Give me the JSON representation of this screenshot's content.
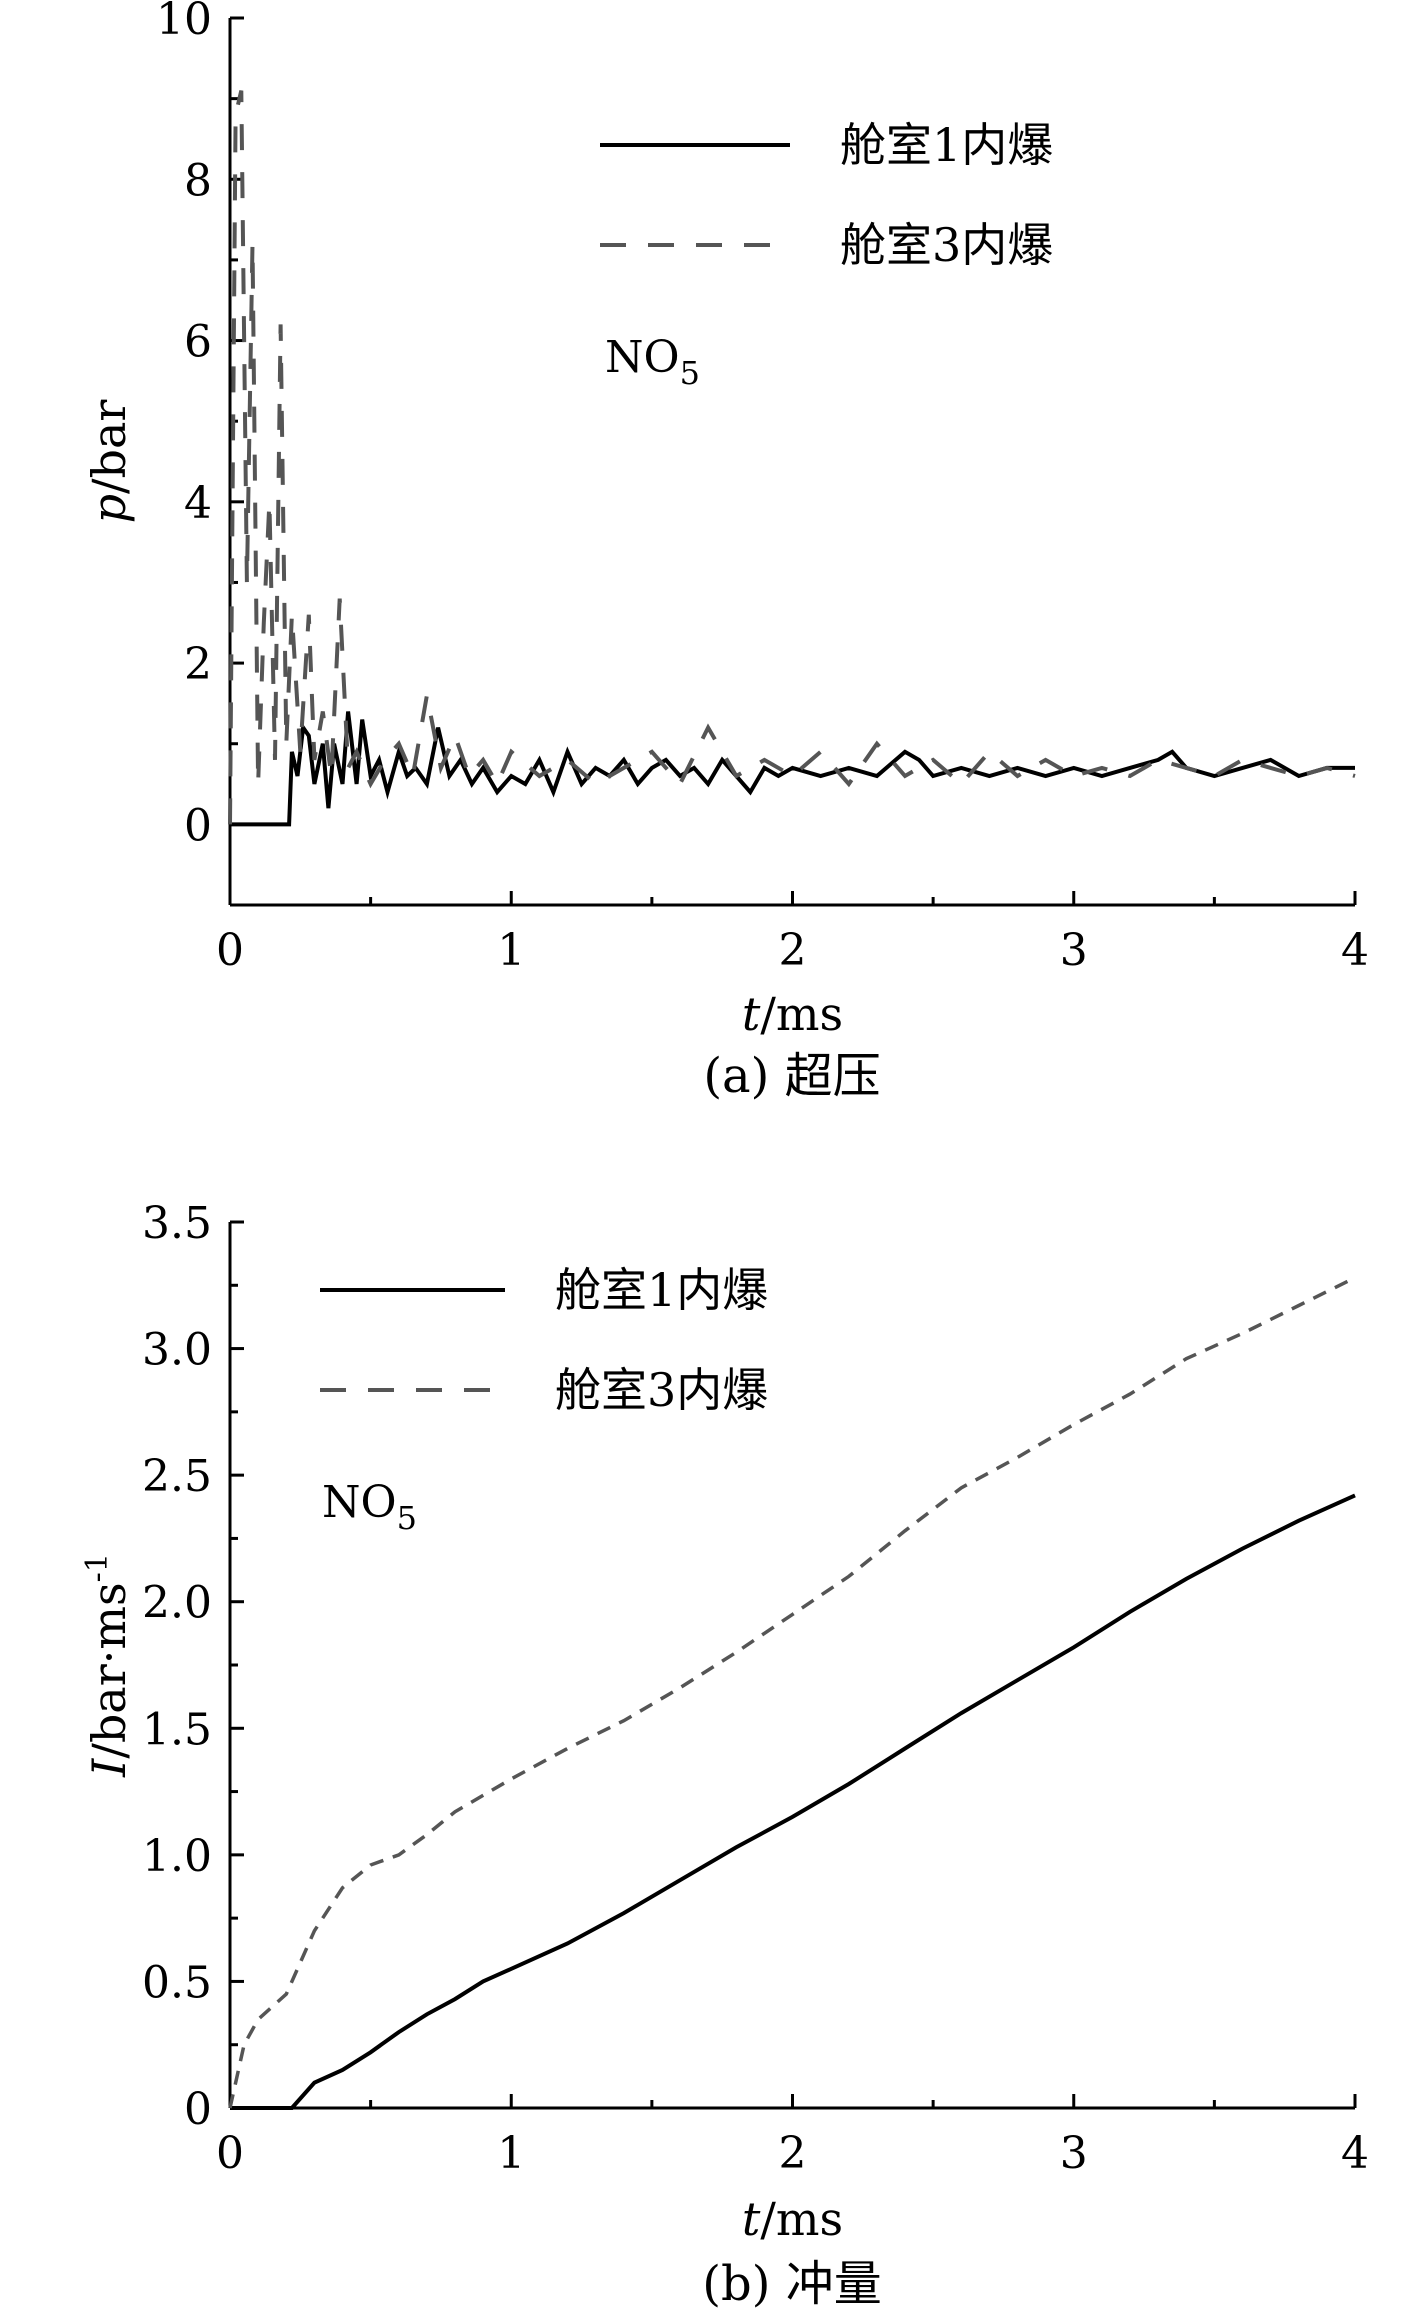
{
  "chart_data": [
    {
      "type": "line",
      "caption": "(a) 超压",
      "xlabel": {
        "italic": "t",
        "rest": "/ms"
      },
      "ylabel": {
        "italic": "p",
        "rest": "/bar"
      },
      "xlim": [
        0,
        4
      ],
      "ylim": [
        -1,
        10
      ],
      "xticks": [
        "0",
        "1",
        "2",
        "3",
        "4"
      ],
      "yticks": [
        "0",
        "2",
        "4",
        "6",
        "8",
        "10"
      ],
      "annotation": {
        "base": "NO",
        "sub": "5"
      },
      "legend_position": "top-right",
      "series": [
        {
          "name": "舱室1内爆",
          "style": "solid",
          "color": "#000000",
          "x": [
            0,
            0.21,
            0.22,
            0.24,
            0.26,
            0.28,
            0.3,
            0.33,
            0.35,
            0.37,
            0.4,
            0.42,
            0.45,
            0.47,
            0.5,
            0.53,
            0.56,
            0.6,
            0.63,
            0.66,
            0.7,
            0.74,
            0.78,
            0.82,
            0.86,
            0.9,
            0.95,
            1.0,
            1.05,
            1.1,
            1.15,
            1.2,
            1.25,
            1.3,
            1.35,
            1.4,
            1.45,
            1.5,
            1.55,
            1.6,
            1.65,
            1.7,
            1.75,
            1.8,
            1.85,
            1.9,
            1.95,
            2.0,
            2.1,
            2.2,
            2.3,
            2.4,
            2.45,
            2.5,
            2.6,
            2.7,
            2.8,
            2.9,
            3.0,
            3.1,
            3.2,
            3.3,
            3.35,
            3.4,
            3.5,
            3.6,
            3.7,
            3.8,
            3.9,
            4.0
          ],
          "y": [
            0,
            0,
            0.9,
            0.6,
            1.2,
            1.1,
            0.5,
            1.0,
            0.2,
            1.0,
            0.5,
            1.4,
            0.5,
            1.3,
            0.6,
            0.8,
            0.4,
            0.9,
            0.6,
            0.7,
            0.5,
            1.2,
            0.6,
            0.8,
            0.5,
            0.7,
            0.4,
            0.6,
            0.5,
            0.8,
            0.4,
            0.9,
            0.5,
            0.7,
            0.6,
            0.8,
            0.5,
            0.7,
            0.8,
            0.6,
            0.7,
            0.5,
            0.8,
            0.6,
            0.4,
            0.7,
            0.6,
            0.7,
            0.6,
            0.7,
            0.6,
            0.9,
            0.8,
            0.6,
            0.7,
            0.6,
            0.7,
            0.6,
            0.7,
            0.6,
            0.7,
            0.8,
            0.9,
            0.7,
            0.6,
            0.7,
            0.8,
            0.6,
            0.7,
            0.7
          ]
        },
        {
          "name": "舱室3内爆",
          "style": "dashed",
          "color": "#555555",
          "x": [
            0,
            0.02,
            0.04,
            0.06,
            0.08,
            0.1,
            0.12,
            0.14,
            0.16,
            0.18,
            0.2,
            0.22,
            0.25,
            0.28,
            0.3,
            0.33,
            0.36,
            0.39,
            0.42,
            0.45,
            0.5,
            0.55,
            0.6,
            0.65,
            0.7,
            0.75,
            0.8,
            0.85,
            0.9,
            0.95,
            1.0,
            1.1,
            1.2,
            1.3,
            1.4,
            1.5,
            1.6,
            1.7,
            1.8,
            1.9,
            2.0,
            2.1,
            2.2,
            2.3,
            2.4,
            2.5,
            2.6,
            2.7,
            2.8,
            2.9,
            3.0,
            3.1,
            3.2,
            3.3,
            3.4,
            3.5,
            3.6,
            3.7,
            3.8,
            3.9,
            4.0
          ],
          "y": [
            0,
            8.8,
            9.1,
            3.0,
            7.2,
            0.5,
            2.5,
            4.0,
            0.8,
            6.2,
            1.0,
            2.6,
            0.9,
            2.6,
            0.8,
            1.4,
            0.6,
            2.8,
            0.7,
            0.9,
            0.5,
            0.8,
            1.0,
            0.6,
            1.6,
            0.7,
            1.1,
            0.6,
            0.8,
            0.5,
            0.9,
            0.6,
            0.8,
            0.5,
            0.7,
            0.9,
            0.5,
            1.2,
            0.6,
            0.8,
            0.6,
            0.9,
            0.5,
            1.0,
            0.6,
            0.8,
            0.5,
            0.9,
            0.6,
            0.8,
            0.6,
            0.7,
            0.6,
            0.8,
            0.7,
            0.6,
            0.8,
            0.7,
            0.6,
            0.7,
            0.6
          ]
        }
      ]
    },
    {
      "type": "line",
      "caption": "(b) 冲量",
      "xlabel": {
        "italic": "t",
        "rest": "/ms"
      },
      "ylabel": {
        "italic": "I",
        "rest": "/bar·ms",
        "sup": "-1"
      },
      "xlim": [
        0,
        4
      ],
      "ylim": [
        0,
        3.5
      ],
      "xticks": [
        "0",
        "1",
        "2",
        "3",
        "4"
      ],
      "yticks": [
        "0",
        "0.5",
        "1.0",
        "1.5",
        "2.0",
        "2.5",
        "3.0",
        "3.5"
      ],
      "annotation": {
        "base": "NO",
        "sub": "5"
      },
      "legend_position": "top-left",
      "series": [
        {
          "name": "舱室1内爆",
          "style": "solid",
          "color": "#000000",
          "x": [
            0,
            0.22,
            0.3,
            0.4,
            0.5,
            0.6,
            0.7,
            0.8,
            0.9,
            1.0,
            1.2,
            1.4,
            1.6,
            1.8,
            2.0,
            2.2,
            2.4,
            2.6,
            2.8,
            3.0,
            3.2,
            3.4,
            3.6,
            3.8,
            4.0
          ],
          "y": [
            0,
            0,
            0.1,
            0.15,
            0.22,
            0.3,
            0.37,
            0.43,
            0.5,
            0.55,
            0.65,
            0.77,
            0.9,
            1.03,
            1.15,
            1.28,
            1.42,
            1.56,
            1.69,
            1.82,
            1.96,
            2.09,
            2.21,
            2.32,
            2.42
          ]
        },
        {
          "name": "舱室3内爆",
          "style": "dashed",
          "color": "#555555",
          "x": [
            0,
            0.05,
            0.1,
            0.2,
            0.3,
            0.4,
            0.5,
            0.6,
            0.7,
            0.8,
            1.0,
            1.2,
            1.4,
            1.6,
            1.8,
            2.0,
            2.2,
            2.4,
            2.6,
            2.8,
            3.0,
            3.2,
            3.4,
            3.6,
            3.8,
            4.0
          ],
          "y": [
            0,
            0.25,
            0.35,
            0.45,
            0.7,
            0.87,
            0.96,
            1.0,
            1.08,
            1.17,
            1.3,
            1.42,
            1.53,
            1.66,
            1.8,
            1.95,
            2.1,
            2.28,
            2.45,
            2.57,
            2.7,
            2.82,
            2.96,
            3.06,
            3.17,
            3.28
          ]
        }
      ]
    }
  ]
}
